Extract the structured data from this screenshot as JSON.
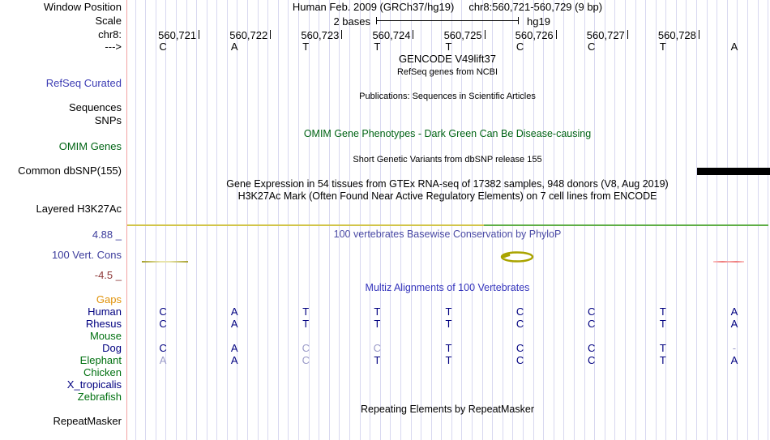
{
  "header": {
    "assembly_title": "Human Feb. 2009 (GRCh37/hg19)",
    "position_title": "chr8:560,721-560,729 (9 bp)",
    "scale_text": "2 bases",
    "genome": "hg19"
  },
  "left_labels": {
    "window_position": "Window Position",
    "scale": "Scale",
    "chrom": "chr8:",
    "strand": "--->",
    "refseq_curated": "RefSeq Curated",
    "sequences": "Sequences",
    "snps": "SNPs",
    "omim_genes": "OMIM Genes",
    "common_dbsnp": "Common dbSNP(155)",
    "layered_h3k27ac": "Layered H3K27Ac",
    "cons_max": "4.88 _",
    "cons_name": "100 Vert. Cons",
    "cons_min": "-4.5 _",
    "repeatmasker": "RepeatMasker"
  },
  "ruler": {
    "chrom_numbers": [
      "560,721",
      "560,722",
      "560,723",
      "560,724",
      "560,725",
      "560,726",
      "560,727",
      "560,728"
    ],
    "sequence": [
      "C",
      "A",
      "T",
      "T",
      "T",
      "C",
      "C",
      "T",
      "A"
    ]
  },
  "track_titles": {
    "gencode": "GENCODE V49lift37",
    "refseq_sub": "RefSeq genes from NCBI",
    "publications": "Publications: Sequences in Scientific Articles",
    "omim": "OMIM Gene Phenotypes - Dark Green Can Be Disease-causing",
    "dbsnp": "Short Genetic Variants from dbSNP release 155",
    "gtex": "Gene Expression in 54 tissues from GTEx RNA-seq of 17382 samples, 948 donors (V8, Aug 2019)",
    "h3k27ac": "H3K27Ac Mark (Often Found Near Active Regulatory Elements) on 7 cell lines from ENCODE",
    "phylop": "100 vertebrates Basewise Conservation by PhyloP",
    "multiz": "Multiz Alignments of 100 Vertebrates",
    "repeatmasker": "Repeating Elements by RepeatMasker"
  },
  "alignment": {
    "species": [
      {
        "name": "Gaps",
        "color": "#e0920a",
        "bases": [
          "",
          "",
          "",
          "",
          "",
          "",
          "",
          "",
          ""
        ]
      },
      {
        "name": "Human",
        "color": "#000080",
        "bases": [
          "C",
          "A",
          "T",
          "T",
          "T",
          "C",
          "C",
          "T",
          "A"
        ]
      },
      {
        "name": "Rhesus",
        "color": "#000080",
        "bases": [
          "C",
          "A",
          "T",
          "T",
          "T",
          "C",
          "C",
          "T",
          "A"
        ]
      },
      {
        "name": "Mouse",
        "color": "#007010",
        "bases": [
          "",
          "",
          "",
          "",
          "",
          "",
          "",
          "",
          ""
        ]
      },
      {
        "name": "Dog",
        "color": "#000080",
        "bases": [
          "C",
          "A",
          {
            "b": "C",
            "dim": true
          },
          {
            "b": "C",
            "dim": true
          },
          "T",
          "C",
          "C",
          "T",
          {
            "b": "-",
            "dim": true
          }
        ]
      },
      {
        "name": "Elephant",
        "color": "#007010",
        "bases": [
          {
            "b": "A",
            "dim": true
          },
          "A",
          {
            "b": "C",
            "dim": true
          },
          "T",
          "T",
          "C",
          "C",
          "T",
          "A"
        ]
      },
      {
        "name": "Chicken",
        "color": "#007010",
        "bases": [
          "",
          "",
          "",
          "",
          "",
          "",
          "",
          "",
          ""
        ]
      },
      {
        "name": "X_tropicalis",
        "color": "#000080",
        "bases": [
          "",
          "",
          "",
          "",
          "",
          "",
          "",
          "",
          ""
        ]
      },
      {
        "name": "Zebrafish",
        "color": "#007010",
        "bases": [
          "",
          "",
          "",
          "",
          "",
          "",
          "",
          "",
          ""
        ]
      }
    ]
  },
  "colors": {
    "base": "#000080",
    "dim_base": "#9a9ac8",
    "refseq_label": "#3c3cb4",
    "omim_green": "#006414",
    "cons_max": "#3c3c9c",
    "cons_min": "#8e3939",
    "cons_label": "#3c3c9c",
    "phylop_title": "#4b4ba5",
    "multiz_title": "#3434bc",
    "h3k27ac_yellow": "#d2c54a",
    "h3k27ac_green": "#5fae46",
    "variant_bar": "#000000",
    "guideline": "#f2a2a2"
  }
}
